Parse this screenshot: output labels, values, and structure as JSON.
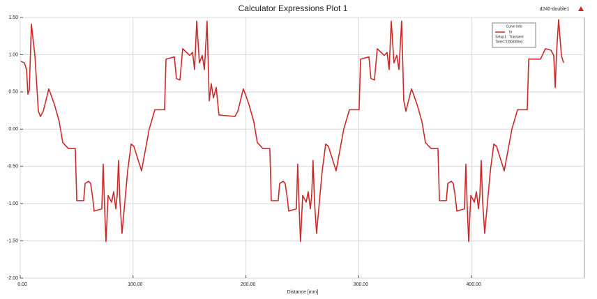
{
  "chart_data": {
    "type": "line",
    "title": "Calculator Expressions Plot 1",
    "design_name": "d240-double1",
    "x_label": "Distance [mm]",
    "legend_title": "Curve Info",
    "legend_lines": [
      "Setup1 : Transient",
      "Time='2283000ns'"
    ],
    "grid": true,
    "xlim": [
      0,
      500
    ],
    "ylim": [
      -2,
      1.5
    ],
    "xticks": [
      {
        "value": 0,
        "label": "0.00"
      },
      {
        "value": 100,
        "label": "100.00"
      },
      {
        "value": 200,
        "label": "200.00"
      },
      {
        "value": 300,
        "label": "300.00"
      },
      {
        "value": 400,
        "label": "400.00"
      }
    ],
    "yticks": [
      {
        "value": 1.5,
        "label": "1.50"
      },
      {
        "value": 1,
        "label": "1.00"
      },
      {
        "value": 0.5,
        "label": "0.50"
      },
      {
        "value": 0,
        "label": "0.00"
      },
      {
        "value": -0.5,
        "label": "-0.50"
      },
      {
        "value": -1,
        "label": "-1.00"
      },
      {
        "value": -1.5,
        "label": "-1.50"
      },
      {
        "value": -2,
        "label": "-2.00"
      }
    ],
    "x": [
      0.6,
      3.7,
      5.6,
      6.8,
      8.0,
      9.9,
      13.0,
      16.1,
      17.9,
      20.4,
      25.3,
      26.6,
      30.3,
      34.6,
      37.7,
      42.6,
      48.8,
      50.1,
      56.2,
      57.5,
      60.6,
      62.4,
      64.3,
      65.5,
      72.3,
      73.5,
      74.8,
      76.0,
      77.9,
      81.0,
      82.8,
      84.7,
      85.9,
      87.1,
      88.4,
      90.2,
      95.2,
      98.3,
      100.7,
      107.5,
      114.3,
      119.3,
      127.9,
      129.2,
      136.6,
      138.4,
      141.5,
      144.0,
      150.2,
      152.7,
      154.5,
      156.4,
      158.8,
      161.3,
      163.2,
      165.6,
      167.5,
      169.3,
      171.2,
      173.7,
      176.1,
      190.3,
      192.8,
      197.7,
      199.0,
      202.7,
      207.0,
      210.1,
      215.0,
      221.2,
      222.5,
      228.6,
      229.9,
      233.0,
      234.8,
      236.7,
      237.9,
      244.7,
      245.9,
      247.2,
      248.4,
      250.3,
      253.4,
      255.2,
      257.1,
      258.3,
      259.5,
      260.8,
      262.6,
      267.6,
      270.7,
      273.1,
      279.9,
      286.7,
      291.7,
      300.3,
      301.6,
      309.0,
      310.8,
      313.9,
      316.4,
      322.6,
      325.1,
      326.9,
      328.8,
      331.2,
      333.7,
      335.6,
      338.0,
      339.9,
      341.8,
      346.7,
      348.0,
      351.7,
      356.0,
      359.1,
      364.0,
      370.2,
      371.5,
      377.6,
      378.9,
      382.0,
      383.8,
      385.7,
      386.9,
      393.7,
      394.9,
      396.2,
      397.4,
      399.3,
      402.4,
      404.2,
      406.1,
      407.3,
      408.5,
      409.8,
      411.6,
      416.6,
      419.7,
      422.1,
      428.9,
      435.7,
      440.7,
      449.3,
      450.6,
      461.1,
      465.4,
      470.3,
      472.8,
      474.1,
      475.3,
      477.1,
      479.6,
      481.5
    ],
    "series": [
      {
        "name": "br",
        "color": "#cc2a2a",
        "values": [
          0.91,
          0.89,
          0.8,
          0.47,
          0.52,
          1.41,
          0.99,
          0.24,
          0.17,
          0.24,
          0.54,
          0.49,
          0.33,
          0.1,
          -0.18,
          -0.26,
          -0.26,
          -0.96,
          -0.96,
          -0.73,
          -0.7,
          -0.73,
          -0.93,
          -1.1,
          -1.07,
          -0.47,
          -1.07,
          -1.51,
          -0.89,
          -0.98,
          -0.84,
          -1.07,
          -0.89,
          -0.42,
          -0.98,
          -1.4,
          -0.56,
          -0.2,
          -0.23,
          -0.56,
          0.0,
          0.26,
          0.26,
          0.94,
          0.97,
          0.68,
          0.66,
          1.08,
          0.99,
          1.03,
          0.8,
          1.45,
          0.89,
          0.99,
          0.8,
          1.45,
          0.38,
          0.61,
          0.42,
          0.56,
          0.19,
          0.17,
          0.24,
          0.54,
          0.49,
          0.33,
          0.1,
          -0.18,
          -0.26,
          -0.26,
          -0.96,
          -0.96,
          -0.73,
          -0.7,
          -0.73,
          -0.93,
          -1.1,
          -1.07,
          -0.47,
          -1.07,
          -1.51,
          -0.89,
          -0.98,
          -0.84,
          -1.07,
          -0.89,
          -0.42,
          -0.98,
          -1.4,
          -0.56,
          -0.2,
          -0.23,
          -0.56,
          0.0,
          0.26,
          0.26,
          0.94,
          0.97,
          0.68,
          0.66,
          1.08,
          0.99,
          1.03,
          0.8,
          1.45,
          0.89,
          0.99,
          0.8,
          1.45,
          0.38,
          0.24,
          0.54,
          0.49,
          0.33,
          0.1,
          -0.18,
          -0.26,
          -0.26,
          -0.96,
          -0.96,
          -0.73,
          -0.7,
          -0.73,
          -0.93,
          -1.1,
          -1.07,
          -0.47,
          -1.07,
          -1.51,
          -0.89,
          -0.98,
          -0.84,
          -1.07,
          -0.89,
          -0.42,
          -0.98,
          -1.4,
          -0.56,
          -0.2,
          -0.23,
          -0.56,
          0.0,
          0.26,
          0.26,
          0.94,
          0.94,
          1.08,
          1.06,
          0.99,
          0.56,
          1.03,
          1.47,
          0.99,
          0.89
        ]
      }
    ]
  }
}
